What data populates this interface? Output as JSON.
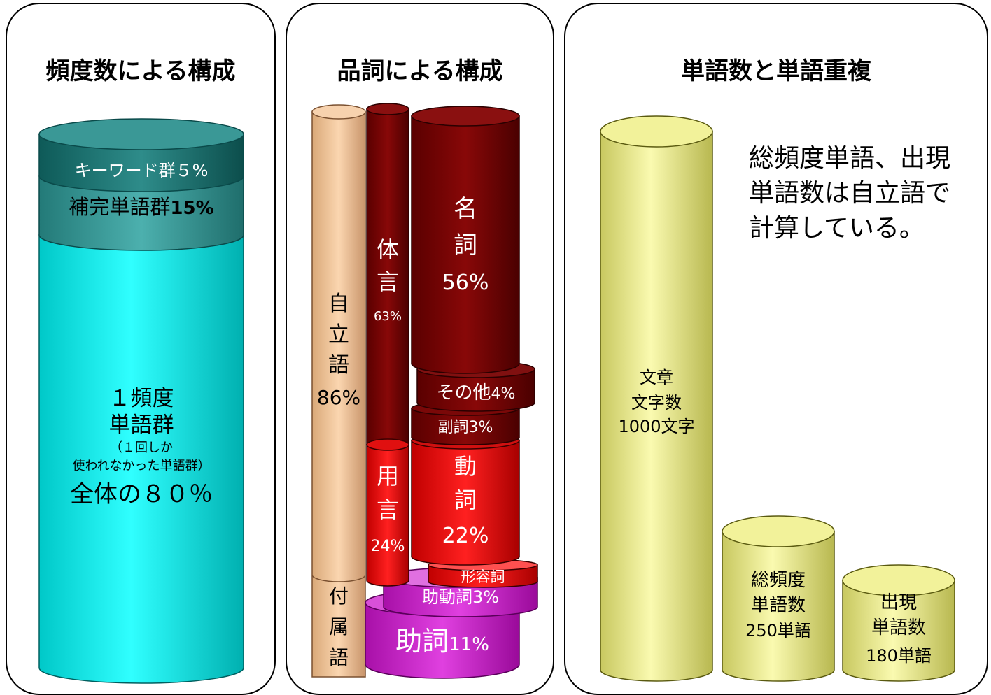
{
  "panel1": {
    "title": "頻度数による構成",
    "keyword": "キーワード群５%",
    "complement_a": "補完単語群",
    "complement_b": "15%",
    "single_line1": "１頻度",
    "single_line2": "単語群",
    "single_note1": "（１回しか",
    "single_note2": "使われなかった単語群）",
    "single_total": "全体の８０％"
  },
  "panel2": {
    "title": "品詞による構成",
    "jiritsu_1": "自",
    "jiritsu_2": "立",
    "jiritsu_3": "語",
    "jiritsu_pct": "86%",
    "fuzoku_1": "付",
    "fuzoku_2": "属",
    "fuzoku_3": "語",
    "taigen_1": "体",
    "taigen_2": "言",
    "taigen_pct": "63%",
    "yougen_1": "用",
    "yougen_2": "言",
    "yougen_pct": "24%",
    "meishi_1": "名",
    "meishi_2": "詞",
    "meishi_pct": "56%",
    "sonota": "その他",
    "sonota_pct": "4%",
    "fukushi": "副詞3%",
    "doushi_1": "動",
    "doushi_2": "詞",
    "doushi_pct": "22%",
    "keiyoushi": "形容詞",
    "jodoushi": "助動詞3%",
    "joshi": "助詞",
    "joshi_pct": "11%"
  },
  "panel3": {
    "title": "単語数と単語重複",
    "note_line1": "総頻度単語、出現",
    "note_line2": "単語数は自立語で",
    "note_line3": "計算している。",
    "bar1_line1": "文章",
    "bar1_line2": "文字数",
    "bar1_line3": "1000文字",
    "bar2_line1": "総頻度",
    "bar2_line2": "単語数",
    "bar2_line3": "250単語",
    "bar3_line1": "出現",
    "bar3_line2": "単語数",
    "bar3_line3": "180単語"
  },
  "colors": {
    "teal_dark": "#2a8886",
    "teal_mid": "#4aa6a4",
    "cyan": "#00e8e8",
    "tan": "#f2c49a",
    "maroon": "#6a0000",
    "red": "#e00000",
    "magenta": "#cc22cc",
    "khaki": "#e8e890"
  }
}
